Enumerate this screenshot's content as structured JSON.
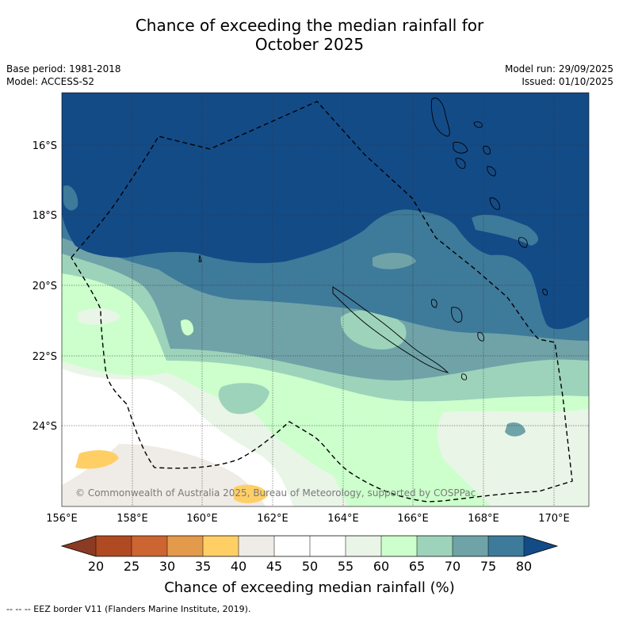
{
  "title": {
    "line1": "Chance of exceeding the median rainfall for",
    "line2": "October 2025"
  },
  "meta": {
    "base_period": "Base period: 1981-2018",
    "model": "Model: ACCESS-S2",
    "model_run": "Model run: 29/09/2025",
    "issued": "Issued: 01/10/2025"
  },
  "axes": {
    "lat_labels": [
      "16°S",
      "18°S",
      "20°S",
      "22°S",
      "24°S"
    ],
    "lon_labels": [
      "156°E",
      "158°E",
      "160°E",
      "162°E",
      "164°E",
      "166°E",
      "168°E",
      "170°E"
    ]
  },
  "copyright": "© Commonwealth of Australia 2025, Bureau of Meteorology, supported by COSPPac",
  "colorbar": {
    "title": "Chance of exceeding median rainfall (%)",
    "ticks": [
      "20",
      "25",
      "30",
      "35",
      "40",
      "45",
      "50",
      "55",
      "60",
      "65",
      "70",
      "75",
      "80"
    ],
    "colors": {
      "lt20": "#8b3a24",
      "20-25": "#b04a22",
      "25-30": "#cc6532",
      "30-35": "#e39a4a",
      "35-40": "#ffcf66",
      "40-45": "#efebe6",
      "45-50": "#ffffff",
      "50-55": "#ffffff",
      "55-60": "#e9f5e7",
      "60-65": "#ccffcc",
      "65-70": "#9dd3ba",
      "70-75": "#6fa3a8",
      "75-80": "#3e7a9a",
      "gt80": "#134b87"
    }
  },
  "footnote": "--  --  -- EEZ border V11 (Flanders Marine Institute, 2019)."
}
